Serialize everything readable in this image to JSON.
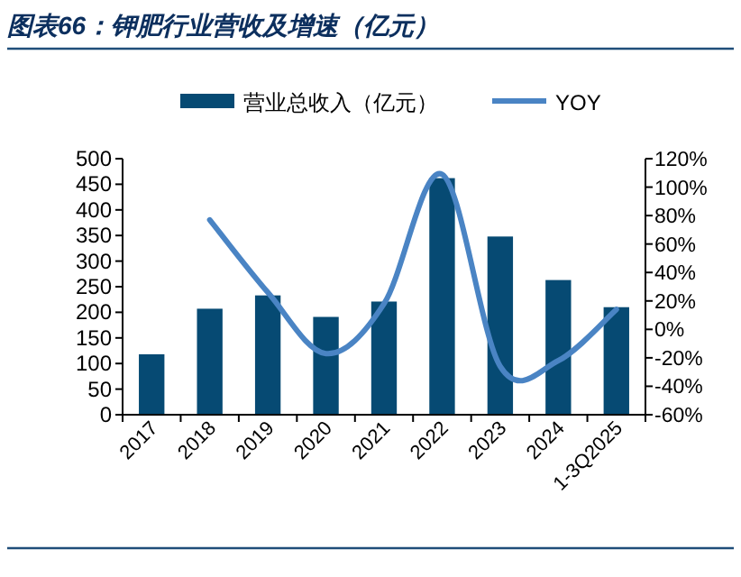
{
  "chart_data": {
    "type": "bar",
    "title": "图表66：钾肥行业营收及增速（亿元）",
    "categories": [
      "2017",
      "2018",
      "2019",
      "2020",
      "2021",
      "2022",
      "2023",
      "2024",
      "1-3Q2025"
    ],
    "series": [
      {
        "name": "营业总收入（亿元）",
        "color": "#064a73",
        "values": [
          118,
          207,
          233,
          191,
          221,
          462,
          348,
          263,
          210
        ]
      },
      {
        "name": "YOY",
        "type": "line",
        "axis": "y2",
        "color": "#4a84c4",
        "values": [
          null,
          77,
          26,
          -17,
          18,
          109,
          -26,
          -22,
          14
        ]
      }
    ],
    "ylim": [
      0,
      500
    ],
    "yticks": [
      0,
      50,
      100,
      150,
      200,
      250,
      300,
      350,
      400,
      450,
      500
    ],
    "y2lim": [
      -60,
      120
    ],
    "y2ticks": [
      {
        "value": -60,
        "label": "-60%"
      },
      {
        "value": -40,
        "label": "-40%"
      },
      {
        "value": -20,
        "label": "-20%"
      },
      {
        "value": 0,
        "label": "0%"
      },
      {
        "value": 20,
        "label": "20%"
      },
      {
        "value": 40,
        "label": "40%"
      },
      {
        "value": 60,
        "label": "60%"
      },
      {
        "value": 80,
        "label": "80%"
      },
      {
        "value": 100,
        "label": "100%"
      },
      {
        "value": 120,
        "label": "120%"
      }
    ],
    "legend": "top",
    "grid": false
  }
}
